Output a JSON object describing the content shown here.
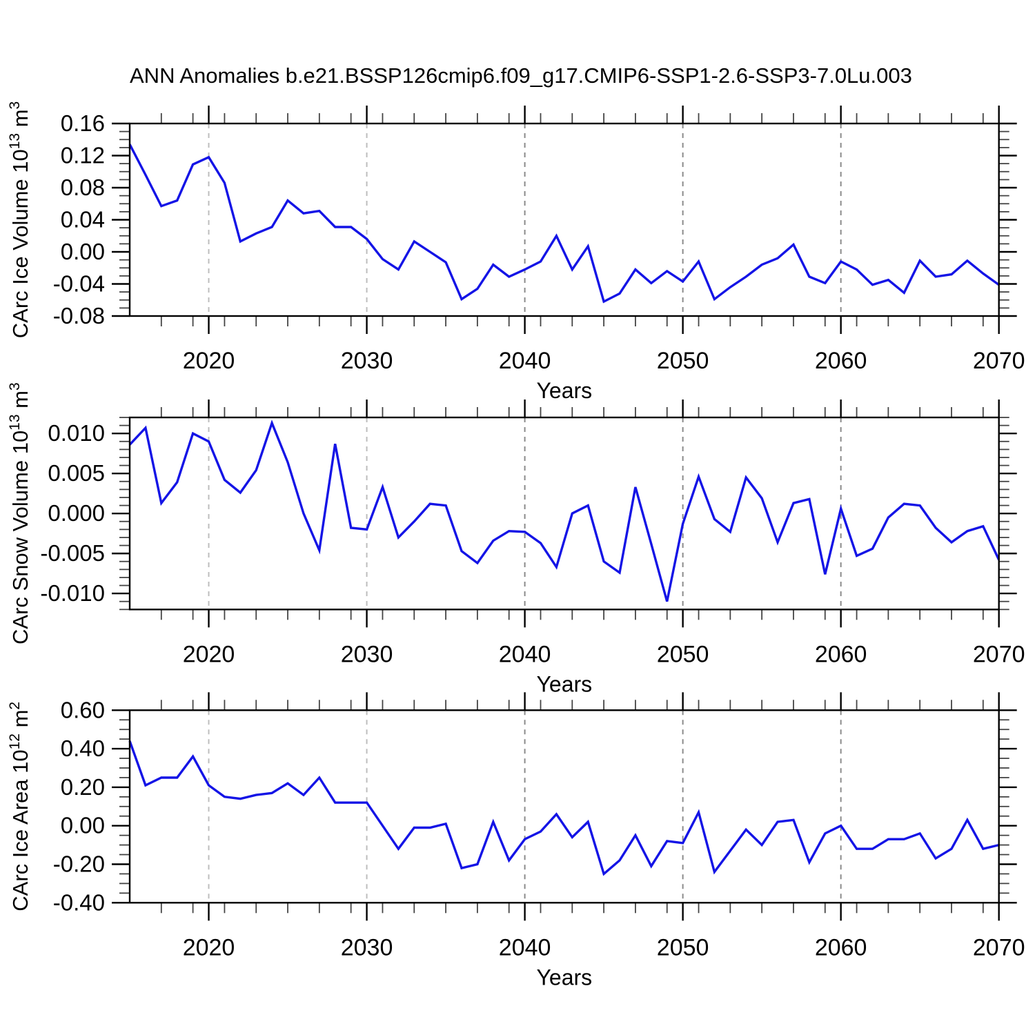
{
  "header": {
    "title": "ANN Anomalies b.e21.BSSP126cmip6.f09_g17.CMIP6-SSP1-2.6-SSP3-7.0Lu.003"
  },
  "axis": {
    "xlabel": "Years",
    "x_range": [
      2015,
      2070
    ],
    "x_major_ticks": [
      2020,
      2030,
      2040,
      2050,
      2060,
      2070
    ],
    "x_major_tick_labels": [
      "2020",
      "2030",
      "2040",
      "2050",
      "2060",
      "2070"
    ],
    "x_minor_step_years": 2,
    "grid_lines": [
      {
        "year": 2020,
        "shade": "light"
      },
      {
        "year": 2030,
        "shade": "light"
      },
      {
        "year": 2040,
        "shade": "dark"
      },
      {
        "year": 2050,
        "shade": "dark"
      },
      {
        "year": 2060,
        "shade": "dark"
      }
    ]
  },
  "colors": {
    "line": "#1414e6",
    "grid_light": "#bdbdbd",
    "grid_dark": "#8a8a8a",
    "axis": "#000000",
    "minor_tick": "#444444",
    "background": "#ffffff",
    "text": "#000000"
  },
  "chart_data": [
    {
      "type": "line",
      "panel": "carc-ice-volume",
      "title": "",
      "xlabel": "Years",
      "ylabel_plain": "CArc Ice Volume 10^13 m^3",
      "ylabel_parts": [
        {
          "text": "CArc Ice Volume 10",
          "sup": false
        },
        {
          "text": "13",
          "sup": true
        },
        {
          "text": " m",
          "sup": false
        },
        {
          "text": "3",
          "sup": true
        }
      ],
      "ylim": [
        -0.08,
        0.16
      ],
      "ytick_values": [
        0.16,
        0.12,
        0.08,
        0.04,
        0.0,
        -0.04,
        -0.08
      ],
      "ytick_labels": [
        "0.16",
        "0.12",
        "0.08",
        "0.04",
        "0.00",
        "-0.04",
        "-0.08"
      ],
      "y_minor_step": 0.01,
      "x": [
        2015,
        2016,
        2017,
        2018,
        2019,
        2020,
        2021,
        2022,
        2023,
        2024,
        2025,
        2026,
        2027,
        2028,
        2029,
        2030,
        2031,
        2032,
        2033,
        2034,
        2035,
        2036,
        2037,
        2038,
        2039,
        2040,
        2041,
        2042,
        2043,
        2044,
        2045,
        2046,
        2047,
        2048,
        2049,
        2050,
        2051,
        2052,
        2053,
        2054,
        2055,
        2056,
        2057,
        2058,
        2059,
        2060,
        2061,
        2062,
        2063,
        2064,
        2065,
        2066,
        2067,
        2068,
        2069,
        2070
      ],
      "values": [
        0.134,
        0.096,
        0.057,
        0.064,
        0.109,
        0.118,
        0.086,
        0.013,
        0.023,
        0.031,
        0.064,
        0.048,
        0.051,
        0.031,
        0.031,
        0.016,
        -0.009,
        -0.022,
        0.013,
        0.0,
        -0.013,
        -0.059,
        -0.046,
        -0.016,
        -0.031,
        -0.022,
        -0.012,
        0.02,
        -0.022,
        0.007,
        -0.062,
        -0.052,
        -0.022,
        -0.039,
        -0.024,
        -0.037,
        -0.012,
        -0.059,
        -0.044,
        -0.031,
        -0.016,
        -0.008,
        0.009,
        -0.031,
        -0.039,
        -0.012,
        -0.022,
        -0.041,
        -0.035,
        -0.051,
        -0.011,
        -0.031,
        -0.028,
        -0.011,
        -0.027,
        -0.041
      ]
    },
    {
      "type": "line",
      "panel": "carc-snow-volume",
      "title": "",
      "xlabel": "Years",
      "ylabel_plain": "CArc Snow Volume 10^13 m^3",
      "ylabel_parts": [
        {
          "text": "CArc Snow Volume 10",
          "sup": false
        },
        {
          "text": "13",
          "sup": true
        },
        {
          "text": " m",
          "sup": false
        },
        {
          "text": "3",
          "sup": true
        }
      ],
      "ylim": [
        -0.012,
        0.012
      ],
      "ytick_values": [
        0.01,
        0.005,
        0.0,
        -0.005,
        -0.01
      ],
      "ytick_labels": [
        "0.010",
        "0.005",
        "0.000",
        "-0.005",
        "-0.010"
      ],
      "y_minor_step": 0.001,
      "x": [
        2015,
        2016,
        2017,
        2018,
        2019,
        2020,
        2021,
        2022,
        2023,
        2024,
        2025,
        2026,
        2027,
        2028,
        2029,
        2030,
        2031,
        2032,
        2033,
        2034,
        2035,
        2036,
        2037,
        2038,
        2039,
        2040,
        2041,
        2042,
        2043,
        2044,
        2045,
        2046,
        2047,
        2048,
        2049,
        2050,
        2051,
        2052,
        2053,
        2054,
        2055,
        2056,
        2057,
        2058,
        2059,
        2060,
        2061,
        2062,
        2063,
        2064,
        2065,
        2066,
        2067,
        2068,
        2069,
        2070
      ],
      "values": [
        0.0086,
        0.0107,
        0.0013,
        0.0039,
        0.01,
        0.009,
        0.0042,
        0.0026,
        0.0054,
        0.0113,
        0.0064,
        0.0,
        -0.0046,
        0.0087,
        -0.0018,
        -0.002,
        0.0033,
        -0.003,
        -0.001,
        0.0012,
        0.001,
        -0.0047,
        -0.0062,
        -0.0034,
        -0.0022,
        -0.0023,
        -0.0037,
        -0.0067,
        0.0,
        0.001,
        -0.006,
        -0.0074,
        0.0033,
        -0.0038,
        -0.011,
        -0.0013,
        0.0046,
        -0.0007,
        -0.0023,
        0.0045,
        0.0019,
        -0.0036,
        0.0013,
        0.0018,
        -0.0076,
        0.0006,
        -0.0053,
        -0.0044,
        -0.0005,
        0.0012,
        0.001,
        -0.0018,
        -0.0036,
        -0.0022,
        -0.0016,
        -0.0058
      ]
    },
    {
      "type": "line",
      "panel": "carc-ice-area",
      "title": "",
      "xlabel": "Years",
      "ylabel_plain": "CArc Ice Area 10^12 m^2",
      "ylabel_parts": [
        {
          "text": "CArc Ice Area 10",
          "sup": false
        },
        {
          "text": "12",
          "sup": true
        },
        {
          "text": " m",
          "sup": false
        },
        {
          "text": "2",
          "sup": true
        }
      ],
      "ylim": [
        -0.4,
        0.6
      ],
      "ytick_values": [
        0.6,
        0.4,
        0.2,
        0.0,
        -0.2,
        -0.4
      ],
      "ytick_labels": [
        "0.60",
        "0.40",
        "0.20",
        "0.00",
        "-0.20",
        "-0.40"
      ],
      "y_minor_step": 0.05,
      "x": [
        2015,
        2016,
        2017,
        2018,
        2019,
        2020,
        2021,
        2022,
        2023,
        2024,
        2025,
        2026,
        2027,
        2028,
        2029,
        2030,
        2031,
        2032,
        2033,
        2034,
        2035,
        2036,
        2037,
        2038,
        2039,
        2040,
        2041,
        2042,
        2043,
        2044,
        2045,
        2046,
        2047,
        2048,
        2049,
        2050,
        2051,
        2052,
        2053,
        2054,
        2055,
        2056,
        2057,
        2058,
        2059,
        2060,
        2061,
        2062,
        2063,
        2064,
        2065,
        2066,
        2067,
        2068,
        2069,
        2070
      ],
      "values": [
        0.44,
        0.21,
        0.25,
        0.25,
        0.36,
        0.21,
        0.15,
        0.14,
        0.16,
        0.17,
        0.22,
        0.16,
        0.25,
        0.12,
        0.12,
        0.12,
        0.0,
        -0.12,
        -0.01,
        -0.01,
        0.01,
        -0.22,
        -0.2,
        0.02,
        -0.18,
        -0.07,
        -0.03,
        0.06,
        -0.06,
        0.02,
        -0.25,
        -0.18,
        -0.05,
        -0.21,
        -0.08,
        -0.09,
        0.07,
        -0.24,
        -0.13,
        -0.02,
        -0.1,
        0.02,
        0.03,
        -0.19,
        -0.04,
        0.0,
        -0.12,
        -0.12,
        -0.07,
        -0.07,
        -0.04,
        -0.17,
        -0.12,
        0.03,
        -0.12,
        -0.1
      ]
    }
  ]
}
